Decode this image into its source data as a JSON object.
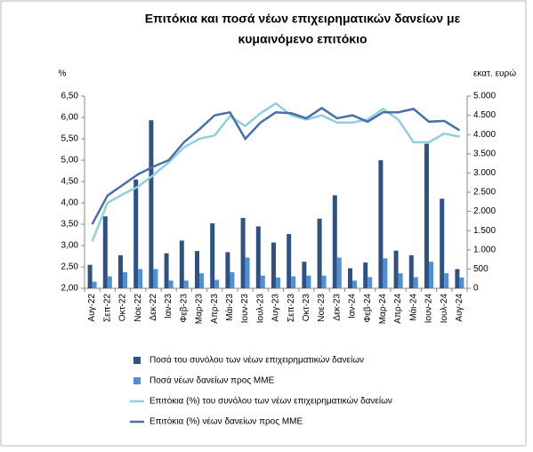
{
  "chart_data": {
    "type": "bar",
    "title": [
      "Επιτόκια και ποσά νέων επιχειρηματικών δανείων με",
      "κυμαινόμενο επιτόκιο"
    ],
    "y_label": "%",
    "y2_label": "εκατ. ευρώ",
    "categories": [
      "Αυγ-22",
      "Σεπ-22",
      "Οκτ-22",
      "Νοε-22",
      "Δεκ-22",
      "Ιαν-23",
      "Φεβ-23",
      "Μαρ-23",
      "Απρ-23",
      "Μάι-23",
      "Ιουν-23",
      "Ιουλ-23",
      "Αυγ-23",
      "Σεπ-23",
      "Οκτ-23",
      "Νοε-23",
      "Δεκ-23",
      "Ιαν-24",
      "Φεβ-24",
      "Μαρ-24",
      "Απρ-24",
      "Μάι-24",
      "Ιουν-24",
      "Ιουλ-24",
      "Αυγ-24"
    ],
    "series": [
      {
        "name": "Ποσά του συνόλου των νέων επιχειρηματικών δανείων",
        "type": "bar",
        "axis": "y2",
        "color": "#2f5283",
        "values": [
          610,
          1870,
          860,
          2830,
          4370,
          910,
          1240,
          970,
          1690,
          940,
          1830,
          1610,
          1190,
          1410,
          690,
          1810,
          2420,
          520,
          670,
          3330,
          980,
          860,
          3760,
          2330,
          500
        ]
      },
      {
        "name": "Ποσά νέων δανείων προς ΜΜΕ",
        "type": "bar",
        "axis": "y2",
        "color": "#4f8fd6",
        "values": [
          170,
          310,
          420,
          500,
          500,
          200,
          200,
          390,
          220,
          420,
          800,
          330,
          280,
          310,
          330,
          330,
          800,
          200,
          290,
          780,
          390,
          290,
          690,
          390,
          280
        ]
      },
      {
        "name": "Επιτόκια (%) του συνόλου των νέων επιχειρηματικών δανείων",
        "type": "line",
        "color": "#8fcfe0",
        "values": [
          3.1,
          4.0,
          4.2,
          4.38,
          4.65,
          4.95,
          5.3,
          5.5,
          5.58,
          6.03,
          5.8,
          6.1,
          6.33,
          6.05,
          5.95,
          6.05,
          5.88,
          5.88,
          5.95,
          6.2,
          5.95,
          5.42,
          5.42,
          5.62,
          5.55
        ]
      },
      {
        "name": "Επιτόκια (%) νέων δανείων προς ΜΜΕ",
        "type": "line",
        "color": "#4a6fa8",
        "values": [
          3.5,
          4.17,
          4.42,
          4.67,
          4.85,
          5.0,
          5.42,
          5.72,
          6.05,
          6.12,
          5.5,
          5.88,
          6.12,
          6.1,
          5.98,
          6.22,
          5.98,
          6.05,
          5.9,
          6.12,
          6.12,
          6.2,
          5.9,
          5.92,
          5.7
        ]
      }
    ],
    "ylim": [
      2.0,
      6.5
    ],
    "yticks": [
      {
        "value": 2.0,
        "label": "2,00"
      },
      {
        "value": 2.5,
        "label": "2,50"
      },
      {
        "value": 3.0,
        "label": "3,00"
      },
      {
        "value": 3.5,
        "label": "3,50"
      },
      {
        "value": 4.0,
        "label": "4,00"
      },
      {
        "value": 4.5,
        "label": "4,50"
      },
      {
        "value": 5.0,
        "label": "5,00"
      },
      {
        "value": 5.5,
        "label": "5,50"
      },
      {
        "value": 6.0,
        "label": "6,00"
      },
      {
        "value": 6.5,
        "label": "6,50"
      }
    ],
    "y2lim": [
      0,
      5000
    ],
    "y2ticks": [
      0,
      500,
      {
        "value": 1000,
        "label": "1.000"
      },
      {
        "value": 1500,
        "label": "1.500"
      },
      {
        "value": 2000,
        "label": "2.000"
      },
      {
        "value": 2500,
        "label": "2.500"
      },
      {
        "value": 3000,
        "label": "3.000"
      },
      {
        "value": 3500,
        "label": "3.500"
      },
      {
        "value": 4000,
        "label": "4.000"
      },
      {
        "value": 4500,
        "label": "4.500"
      },
      {
        "value": 5000,
        "label": "5.000"
      }
    ]
  }
}
